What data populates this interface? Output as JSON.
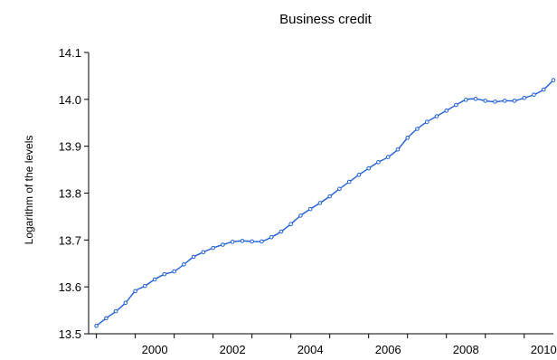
{
  "chart_data": {
    "type": "line",
    "title": "Business credit",
    "xlabel": "",
    "ylabel": "Logarithm of the levels",
    "xlim": [
      1998.8,
      2010.75
    ],
    "ylim": [
      13.5,
      14.1
    ],
    "yticks": [
      13.5,
      13.6,
      13.7,
      13.8,
      13.9,
      14.0,
      14.1
    ],
    "ytick_labels": [
      "13.5",
      "13.6",
      "13.7",
      "13.8",
      "13.9",
      "14.0",
      "14.1"
    ],
    "xticks": [
      2000,
      2002,
      2004,
      2006,
      2008,
      2010
    ],
    "xtick_labels": [
      "2000",
      "2002",
      "2004",
      "2006",
      "2008",
      "2010"
    ],
    "grid": false,
    "legend": "none",
    "colors": {
      "series": "#1f5fd6",
      "axis": "#000000"
    },
    "series": [
      {
        "name": "",
        "style": "line-with-circle-markers",
        "x": [
          1999.0,
          1999.25,
          1999.5,
          1999.75,
          2000.0,
          2000.25,
          2000.5,
          2000.75,
          2001.0,
          2001.25,
          2001.5,
          2001.75,
          2002.0,
          2002.25,
          2002.5,
          2002.75,
          2003.0,
          2003.25,
          2003.5,
          2003.75,
          2004.0,
          2004.25,
          2004.5,
          2004.75,
          2005.0,
          2005.25,
          2005.5,
          2005.75,
          2006.0,
          2006.25,
          2006.5,
          2006.75,
          2007.0,
          2007.25,
          2007.5,
          2007.75,
          2008.0,
          2008.25,
          2008.5,
          2008.75,
          2009.0,
          2009.25,
          2009.5,
          2009.75,
          2010.0,
          2010.25,
          2010.5,
          2010.75
        ],
        "y": [
          13.517,
          13.533,
          13.548,
          13.566,
          13.591,
          13.602,
          13.616,
          13.627,
          13.633,
          13.648,
          13.664,
          13.674,
          13.683,
          13.69,
          13.696,
          13.698,
          13.697,
          13.697,
          13.706,
          13.718,
          13.734,
          13.752,
          13.766,
          13.779,
          13.793,
          13.809,
          13.824,
          13.839,
          13.853,
          13.866,
          13.877,
          13.893,
          13.918,
          13.937,
          13.952,
          13.964,
          13.976,
          13.988,
          13.999,
          14.001,
          13.997,
          13.995,
          13.997,
          13.997,
          14.003,
          14.01,
          14.021,
          14.041
        ]
      }
    ]
  }
}
